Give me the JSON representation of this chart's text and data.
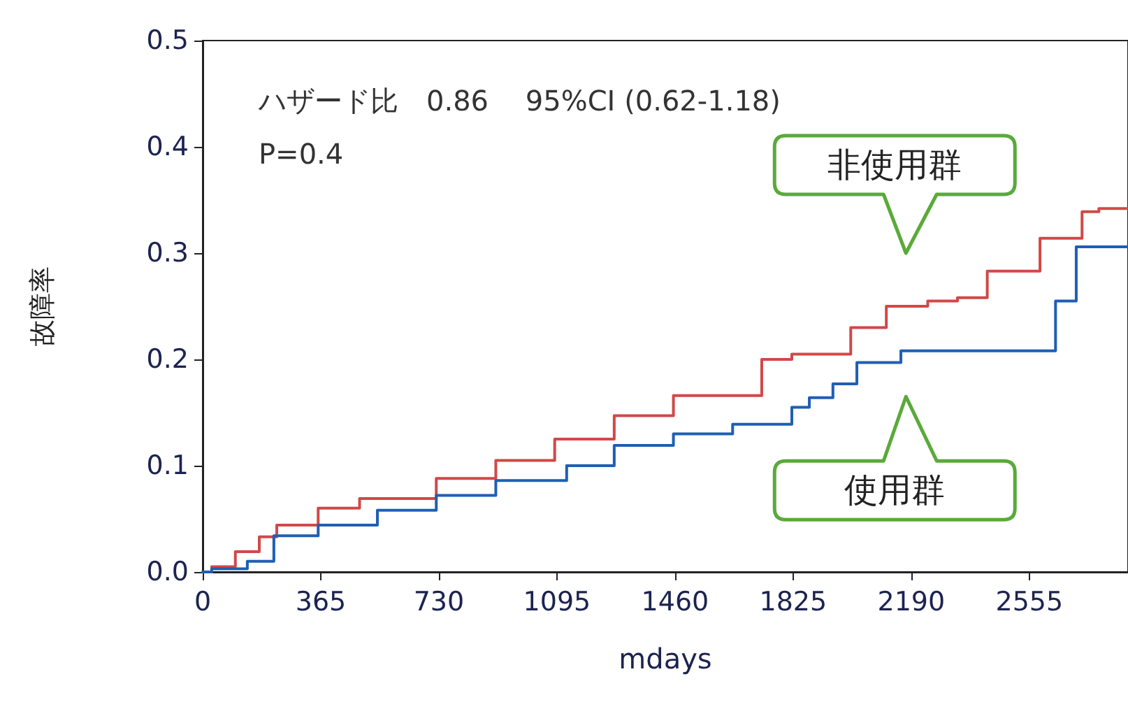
{
  "chart_data": {
    "type": "step",
    "xlabel": "mdays",
    "ylabel": "故障率",
    "xlim": [
      0,
      2860
    ],
    "xticks": [
      0,
      365,
      730,
      1095,
      1460,
      1825,
      2190,
      2555
    ],
    "ylim": [
      0,
      0.5
    ],
    "yticks": [
      {
        "value": 0,
        "label": "0.0"
      },
      0.1,
      0.2,
      0.3,
      0.4,
      0.5
    ],
    "grid": false,
    "marker": "none",
    "line_style": "solid",
    "series": [
      {
        "name": "非使用群",
        "color": "#d24848",
        "x": [
          0,
          28,
          101,
          175,
          229,
          357,
          485,
          722,
          906,
          1088,
          1272,
          1455,
          1728,
          1821,
          2003,
          2113,
          2241,
          2333,
          2425,
          2588,
          2718,
          2770,
          2860
        ],
        "values": [
          0,
          0.005,
          0.019,
          0.033,
          0.044,
          0.06,
          0.069,
          0.088,
          0.105,
          0.125,
          0.147,
          0.166,
          0.2,
          0.205,
          0.23,
          0.25,
          0.255,
          0.258,
          0.283,
          0.314,
          0.339,
          0.342,
          0.342
        ]
      },
      {
        "name": "使用群",
        "color": "#1f5fb4",
        "x": [
          0,
          28,
          138,
          220,
          357,
          540,
          722,
          906,
          1125,
          1272,
          1455,
          1638,
          1821,
          1875,
          1948,
          2022,
          2158,
          2636,
          2700,
          2860
        ],
        "values": [
          0,
          0.003,
          0.01,
          0.034,
          0.044,
          0.058,
          0.072,
          0.086,
          0.1,
          0.119,
          0.13,
          0.139,
          0.155,
          0.164,
          0.177,
          0.197,
          0.208,
          0.255,
          0.306,
          0.306
        ]
      }
    ],
    "annotations": [
      "ハザード比　0.86　 95%CI (0.62-1.18)",
      "P=0.4"
    ]
  }
}
